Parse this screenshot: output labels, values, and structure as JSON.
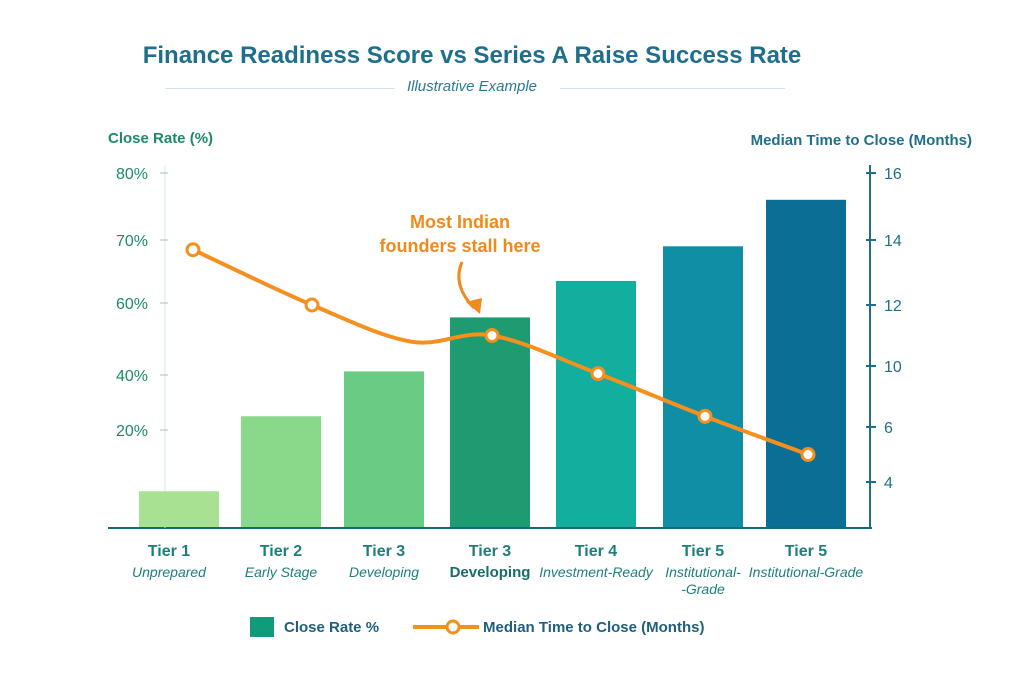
{
  "chart_data": {
    "type": "bar+line",
    "title": "Finance Readiness Score vs Series A Raise Success Rate",
    "subtitle": "Illustrative Example",
    "ylabel": "Close Rate (%)",
    "y2label": "Median Time to Close (Months)",
    "yticks": [
      "80%",
      "70%",
      "60%",
      "40%",
      "20%"
    ],
    "y2ticks": [
      "16",
      "14",
      "12",
      "10",
      "6",
      "4"
    ],
    "categories": [
      {
        "tier": "Tier 1",
        "stage": "Unprepared"
      },
      {
        "tier": "Tier 2",
        "stage": "Early Stage"
      },
      {
        "tier": "Tier 3",
        "stage": "Developing"
      },
      {
        "tier": "Tier 3",
        "stage": "Developing"
      },
      {
        "tier": "Tier 4",
        "stage": "Investment-Ready"
      },
      {
        "tier": "Tier 5",
        "stage": "Institutional-\n-Grade"
      },
      {
        "tier": "Tier 5",
        "stage": "Institutional-Grade"
      }
    ],
    "series": [
      {
        "name": "Close Rate %",
        "type": "bar",
        "axis": "left",
        "values": [
          7.5,
          25,
          41,
          56,
          63.5,
          69,
          76
        ],
        "colors": [
          "#a8e192",
          "#8ad98a",
          "#6acb84",
          "#1f9b72",
          "#12ae9e",
          "#0f8ea5",
          "#0b6e95"
        ]
      },
      {
        "name": "Median Time to Close (Months)",
        "type": "line",
        "axis": "right",
        "values": [
          13.7,
          12.0,
          10.8,
          11.0,
          9.5,
          6.7,
          5.0
        ],
        "color": "#f5901e"
      }
    ],
    "annotation": "Most Indian\nfounders stall here",
    "legend": "bottom",
    "grid": false
  }
}
